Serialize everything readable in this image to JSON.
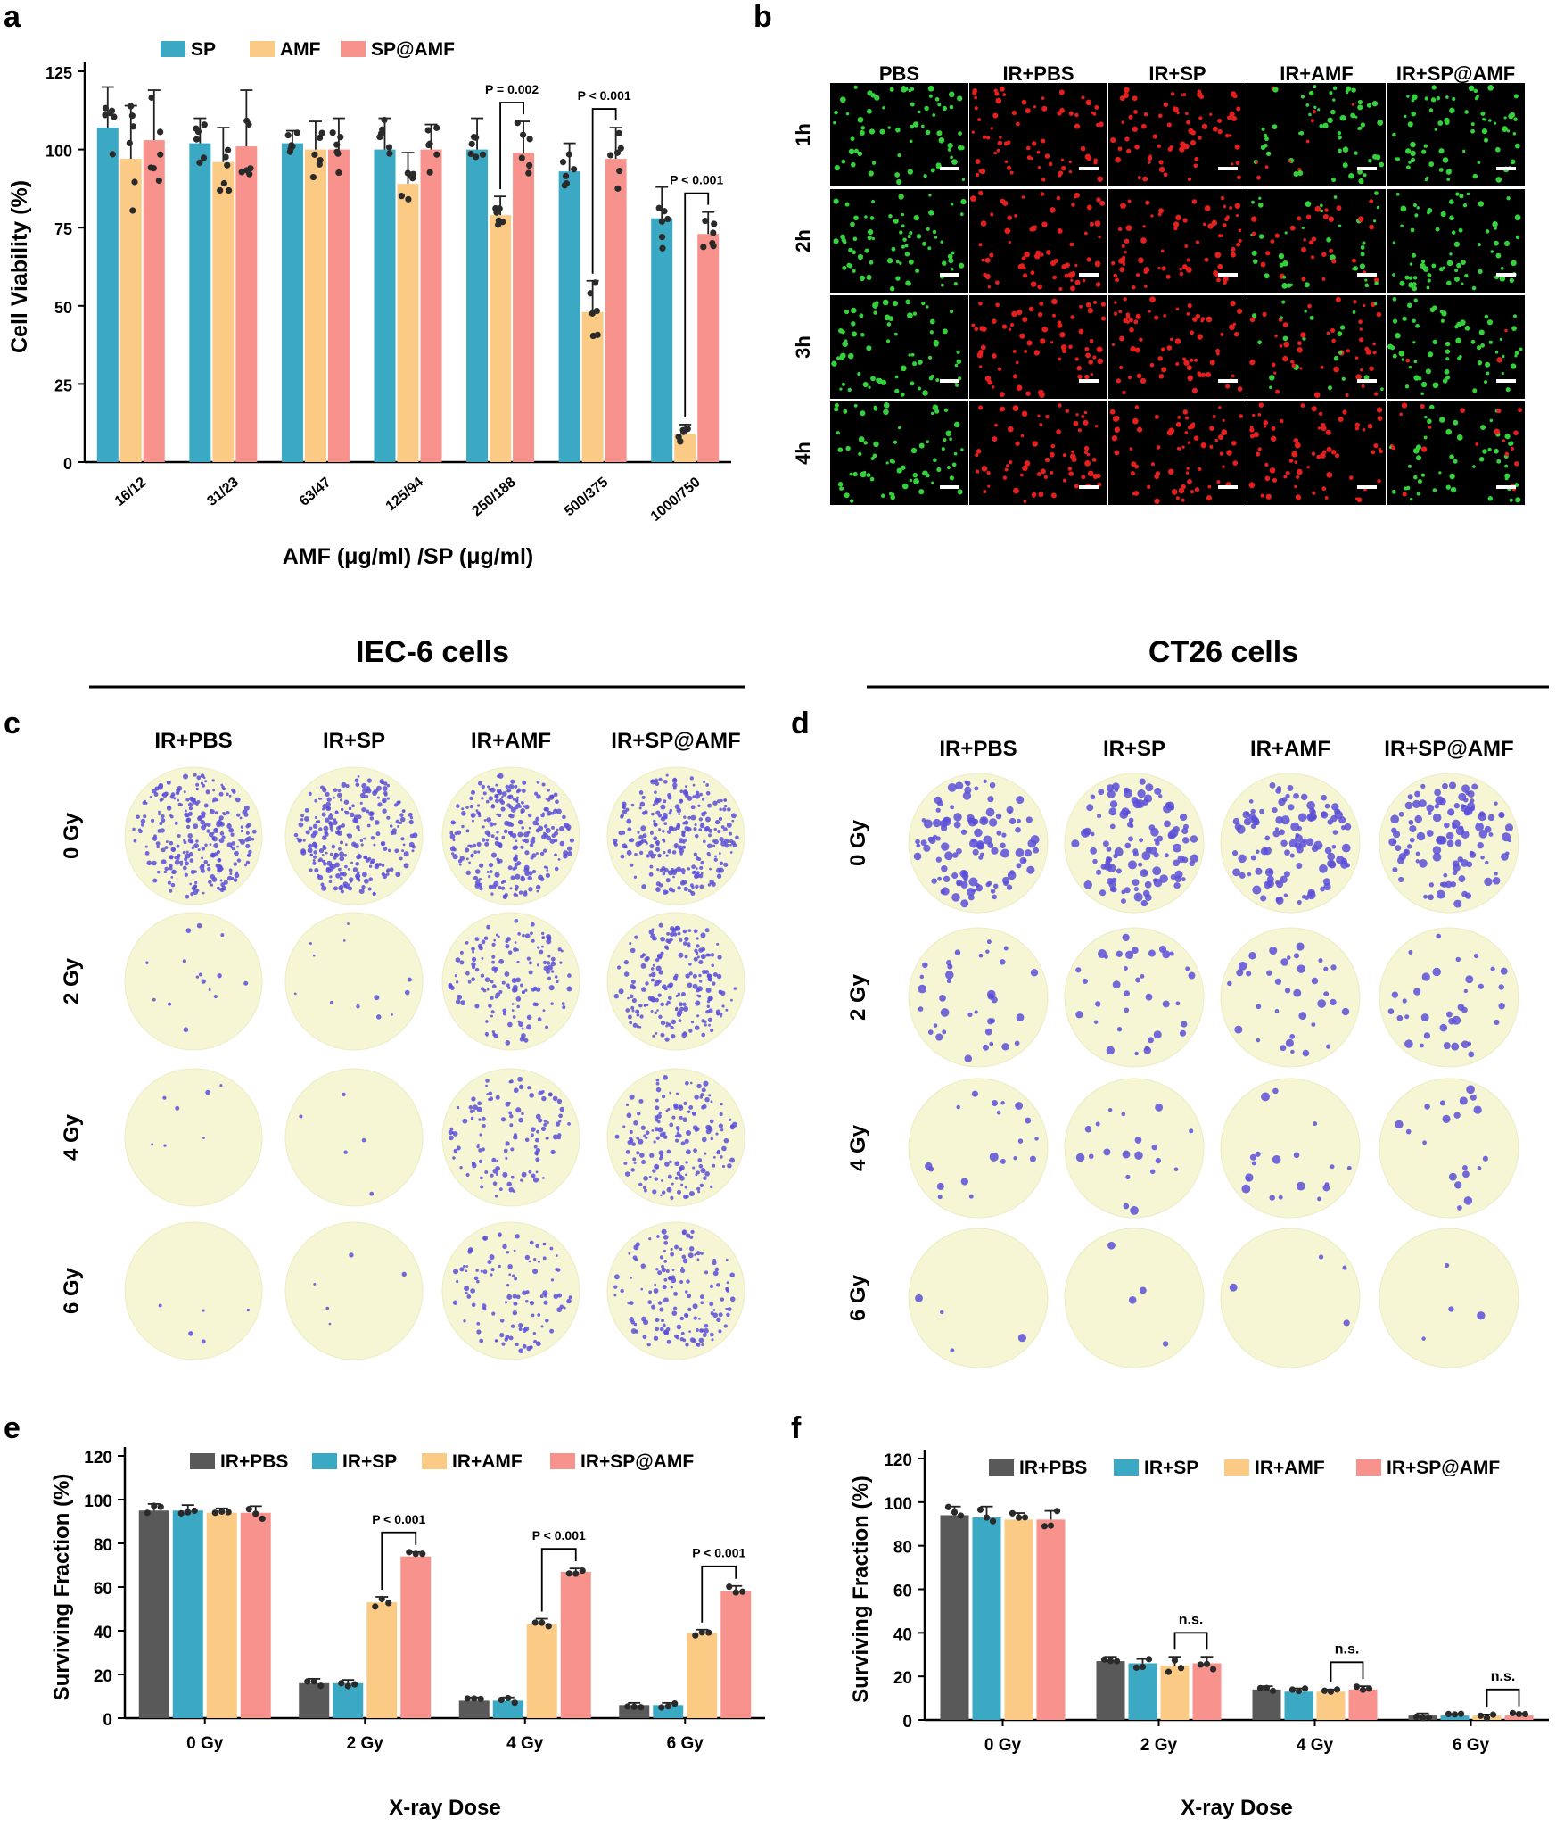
{
  "colors": {
    "sp": "#3BA8C4",
    "amf": "#FBCB85",
    "spamf": "#F8928C",
    "pbs": "#595959",
    "dots": "#2a2a2a",
    "plate": "#F7F6D4",
    "live_cell": "#35D13C",
    "dead_cell": "#E4201E",
    "colony": "#5B4FD8"
  },
  "panel_letters": [
    "a",
    "b",
    "c",
    "d",
    "e",
    "f"
  ],
  "chart_data": [
    {
      "panel": "a",
      "type": "bar",
      "ylabel": "Cell Viability (%)",
      "xlabel": "AMF (μg/ml) /SP (μg/ml)",
      "categories": [
        "16/12",
        "31/23",
        "63/47",
        "125/94",
        "250/188",
        "500/375",
        "1000/750"
      ],
      "ylim": [
        0,
        125
      ],
      "yticks": [
        0,
        25,
        50,
        75,
        100,
        125
      ],
      "legend_position": "top",
      "series": [
        {
          "name": "SP",
          "color": "#3BA8C4",
          "values": [
            107,
            102,
            102,
            100,
            100,
            93,
            78
          ],
          "err": [
            13,
            8,
            4,
            10,
            10,
            9,
            10
          ]
        },
        {
          "name": "AMF",
          "color": "#FBCB85",
          "values": [
            97,
            96,
            100,
            89,
            79,
            48,
            9
          ],
          "err": [
            17,
            11,
            9,
            10,
            6,
            10,
            3
          ]
        },
        {
          "name": "SP@AMF",
          "color": "#F8928C",
          "values": [
            103,
            101,
            100,
            100,
            99,
            97,
            73
          ],
          "err": [
            16,
            18,
            10,
            8,
            10,
            10,
            7
          ]
        }
      ],
      "annotations": [
        {
          "category": "250/188",
          "text": "P = 0.002"
        },
        {
          "category": "500/375",
          "text": "P < 0.001"
        },
        {
          "category": "1000/750",
          "text": "P < 0.001"
        }
      ]
    },
    {
      "panel": "e",
      "type": "bar",
      "ylabel": "Surviving Fraction (%)",
      "xlabel": "X-ray Dose",
      "categories": [
        "0 Gy",
        "2 Gy",
        "4 Gy",
        "6 Gy"
      ],
      "ylim": [
        0,
        120
      ],
      "yticks": [
        0,
        20,
        40,
        60,
        80,
        100,
        120
      ],
      "legend_position": "top",
      "series": [
        {
          "name": "IR+PBS",
          "color": "#595959",
          "values": [
            95,
            16,
            8,
            6
          ],
          "err": [
            3,
            2,
            1.5,
            1
          ]
        },
        {
          "name": "IR+SP",
          "color": "#3BA8C4",
          "values": [
            95,
            16,
            8,
            6
          ],
          "err": [
            2.5,
            1.5,
            1.5,
            1
          ]
        },
        {
          "name": "IR+AMF",
          "color": "#FBCB85",
          "values": [
            94,
            53,
            43,
            39
          ],
          "err": [
            2,
            2.5,
            2.5,
            1.5
          ]
        },
        {
          "name": "IR+SP@AMF",
          "color": "#F8928C",
          "values": [
            94,
            74,
            67,
            58
          ],
          "err": [
            3,
            2,
            1.5,
            2.5
          ]
        }
      ],
      "annotations": [
        {
          "category": "2 Gy",
          "text": "P < 0.001"
        },
        {
          "category": "4 Gy",
          "text": "P < 0.001"
        },
        {
          "category": "6 Gy",
          "text": "P < 0.001"
        }
      ]
    },
    {
      "panel": "f",
      "type": "bar",
      "ylabel": "Surviving Fraction (%)",
      "xlabel": "X-ray Dose",
      "categories": [
        "0 Gy",
        "2 Gy",
        "4 Gy",
        "6 Gy"
      ],
      "ylim": [
        0,
        120
      ],
      "yticks": [
        0,
        20,
        40,
        60,
        80,
        100,
        120
      ],
      "legend_position": "top",
      "series": [
        {
          "name": "IR+PBS",
          "color": "#595959",
          "values": [
            94,
            27,
            14,
            2
          ],
          "err": [
            4,
            2,
            1.5,
            1
          ]
        },
        {
          "name": "IR+SP",
          "color": "#3BA8C4",
          "values": [
            93,
            26,
            13,
            2
          ],
          "err": [
            5,
            2,
            1.5,
            0.5
          ]
        },
        {
          "name": "IR+AMF",
          "color": "#FBCB85",
          "values": [
            92,
            25,
            13,
            2
          ],
          "err": [
            3,
            4,
            1,
            0.5
          ]
        },
        {
          "name": "IR+SP@AMF",
          "color": "#F8928C",
          "values": [
            92,
            26,
            14,
            2
          ],
          "err": [
            4,
            3,
            1.5,
            1
          ]
        }
      ],
      "annotations": [
        {
          "category": "2 Gy",
          "text": "n.s."
        },
        {
          "category": "4 Gy",
          "text": "n.s."
        },
        {
          "category": "6 Gy",
          "text": "n.s."
        }
      ]
    }
  ],
  "panel_b": {
    "columns": [
      "PBS",
      "IR+PBS",
      "IR+SP",
      "IR+AMF",
      "IR+SP@AMF"
    ],
    "rows": [
      "1h",
      "2h",
      "3h",
      "4h"
    ],
    "red_fraction": [
      [
        0.0,
        1.0,
        1.0,
        0.15,
        0.0
      ],
      [
        0.0,
        1.0,
        1.0,
        0.5,
        0.0
      ],
      [
        0.0,
        1.0,
        1.0,
        0.75,
        0.05
      ],
      [
        0.0,
        1.0,
        1.0,
        1.0,
        0.3
      ]
    ]
  },
  "panel_c": {
    "heading": "IEC-6 cells",
    "columns": [
      "IR+PBS",
      "IR+SP",
      "IR+AMF",
      "IR+SP@AMF"
    ],
    "rows": [
      "0 Gy",
      "2 Gy",
      "4 Gy",
      "6 Gy"
    ],
    "colony_density": [
      [
        1.0,
        1.0,
        1.0,
        1.0
      ],
      [
        0.05,
        0.04,
        0.55,
        0.75
      ],
      [
        0.02,
        0.01,
        0.45,
        0.65
      ],
      [
        0.01,
        0.01,
        0.4,
        0.55
      ]
    ]
  },
  "panel_d": {
    "heading": "CT26 cells",
    "columns": [
      "IR+PBS",
      "IR+SP",
      "IR+AMF",
      "IR+SP@AMF"
    ],
    "rows": [
      "0 Gy",
      "2 Gy",
      "4 Gy",
      "6 Gy"
    ],
    "colony_density": [
      [
        1.0,
        1.0,
        1.0,
        1.0
      ],
      [
        0.3,
        0.3,
        0.3,
        0.3
      ],
      [
        0.15,
        0.15,
        0.15,
        0.15
      ],
      [
        0.02,
        0.02,
        0.02,
        0.02
      ]
    ]
  }
}
